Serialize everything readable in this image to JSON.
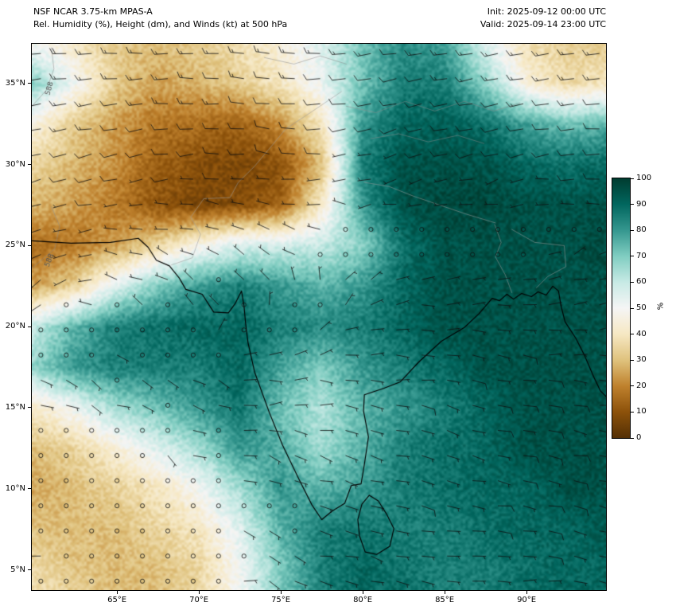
{
  "header": {
    "model": "NSF NCAR 3.75-km MPAS-A",
    "subtitle": "Rel. Humidity (%), Height (dm), and Winds (kt) at 500 hPa",
    "init": "Init: 2025-09-12 00:00 UTC",
    "valid": "Valid: 2025-09-14 23:00 UTC"
  },
  "chart_data": {
    "type": "heatmap",
    "field_name": "Relative Humidity",
    "units": "%",
    "level": "500 hPa",
    "overlays": [
      "height contours (dm)",
      "wind barbs (kt)"
    ],
    "xlim": [
      59.8,
      94.85
    ],
    "ylim": [
      3.75,
      37.45
    ],
    "x_ticks": [
      {
        "value": 65,
        "label": "65°E"
      },
      {
        "value": 70,
        "label": "70°E"
      },
      {
        "value": 75,
        "label": "75°E"
      },
      {
        "value": 80,
        "label": "80°E"
      },
      {
        "value": 85,
        "label": "85°E"
      },
      {
        "value": 90,
        "label": "90°E"
      }
    ],
    "y_ticks": [
      {
        "value": 5,
        "label": "5°N"
      },
      {
        "value": 10,
        "label": "10°N"
      },
      {
        "value": 15,
        "label": "15°N"
      },
      {
        "value": 20,
        "label": "20°N"
      },
      {
        "value": 25,
        "label": "25°N"
      },
      {
        "value": 30,
        "label": "30°N"
      },
      {
        "value": 35,
        "label": "35°N"
      }
    ],
    "colorbar": {
      "unit_label": "%",
      "ticks": [
        100,
        90,
        80,
        70,
        60,
        50,
        40,
        30,
        20,
        10,
        0
      ],
      "stops": [
        {
          "value": 0,
          "color": "#543005"
        },
        {
          "value": 10,
          "color": "#8c510a"
        },
        {
          "value": 20,
          "color": "#bf812d"
        },
        {
          "value": 30,
          "color": "#dfc27d"
        },
        {
          "value": 40,
          "color": "#f6e8c3"
        },
        {
          "value": 50,
          "color": "#f5f5f5"
        },
        {
          "value": 60,
          "color": "#c7eae5"
        },
        {
          "value": 70,
          "color": "#80cdc1"
        },
        {
          "value": 80,
          "color": "#35978f"
        },
        {
          "value": 90,
          "color": "#01665e"
        },
        {
          "value": 100,
          "color": "#003c30"
        }
      ]
    },
    "humidity_grid": {
      "lons": [
        60,
        62.5,
        65,
        67.5,
        70,
        72.5,
        75,
        77.5,
        80,
        82.5,
        85,
        87.5,
        90,
        92.5,
        95
      ],
      "lats": [
        37.5,
        35,
        32.5,
        30,
        27.5,
        25,
        22.5,
        20,
        17.5,
        15,
        12.5,
        10,
        7.5,
        5,
        2.5
      ],
      "values": [
        [
          50,
          40,
          32,
          30,
          33,
          38,
          45,
          55,
          72,
          82,
          78,
          55,
          38,
          33,
          32
        ],
        [
          68,
          50,
          32,
          25,
          28,
          33,
          40,
          52,
          72,
          85,
          85,
          68,
          45,
          36,
          40
        ],
        [
          45,
          32,
          24,
          18,
          16,
          14,
          22,
          40,
          80,
          90,
          92,
          88,
          78,
          72,
          75
        ],
        [
          35,
          28,
          22,
          13,
          9,
          7,
          10,
          30,
          85,
          95,
          95,
          95,
          90,
          88,
          90
        ],
        [
          28,
          24,
          18,
          11,
          7,
          9,
          14,
          42,
          80,
          95,
          97,
          97,
          95,
          95,
          95
        ],
        [
          16,
          18,
          25,
          35,
          48,
          56,
          58,
          60,
          68,
          88,
          95,
          95,
          95,
          95,
          97
        ],
        [
          25,
          35,
          55,
          70,
          80,
          85,
          80,
          75,
          80,
          90,
          95,
          95,
          95,
          95,
          95
        ],
        [
          60,
          75,
          85,
          88,
          90,
          90,
          85,
          83,
          85,
          90,
          95,
          95,
          95,
          95,
          95
        ],
        [
          68,
          80,
          85,
          85,
          85,
          90,
          78,
          70,
          80,
          85,
          90,
          95,
          95,
          95,
          95
        ],
        [
          42,
          52,
          65,
          72,
          80,
          87,
          72,
          63,
          75,
          80,
          85,
          90,
          95,
          95,
          95
        ],
        [
          30,
          35,
          45,
          55,
          65,
          80,
          76,
          65,
          75,
          85,
          88,
          90,
          95,
          95,
          95
        ],
        [
          26,
          30,
          34,
          40,
          50,
          65,
          80,
          75,
          80,
          85,
          88,
          90,
          90,
          95,
          95
        ],
        [
          30,
          30,
          30,
          35,
          40,
          55,
          75,
          85,
          87,
          85,
          85,
          88,
          90,
          90,
          93
        ],
        [
          36,
          31,
          29,
          30,
          35,
          50,
          70,
          85,
          90,
          87,
          85,
          85,
          88,
          90,
          90
        ],
        [
          40,
          35,
          30,
          30,
          36,
          50,
          70,
          85,
          90,
          90,
          86,
          86,
          90,
          90,
          90
        ]
      ]
    },
    "wind_grid": {
      "lons": [
        60,
        67,
        74,
        81,
        88,
        95
      ],
      "lats": [
        37,
        30,
        23,
        16,
        9,
        4
      ],
      "u": [
        [
          18,
          16,
          14,
          12,
          15,
          16
        ],
        [
          10,
          8,
          8,
          6,
          8,
          10
        ],
        [
          4,
          3,
          2,
          -3,
          -5,
          -5
        ],
        [
          -4,
          -3,
          -4,
          -6,
          -7,
          -8
        ],
        [
          1,
          1,
          -2,
          -6,
          -7,
          -8
        ],
        [
          2,
          1,
          -3,
          -6,
          -7,
          -6
        ]
      ],
      "v": [
        [
          2,
          0,
          -2,
          2,
          3,
          2
        ],
        [
          3,
          2,
          -1,
          2,
          2,
          0
        ],
        [
          2,
          -2,
          -3,
          -2,
          0,
          -2
        ],
        [
          1,
          2,
          0,
          1,
          2,
          0
        ],
        [
          0,
          1,
          1,
          2,
          1,
          2
        ],
        [
          1,
          0,
          1,
          1,
          0,
          1
        ]
      ],
      "barb_spacing_deg": 1.55,
      "calm_threshold_kt": 2.5
    },
    "height_contour_labels": [
      {
        "text": "588",
        "lon": 60.85,
        "lat": 34.7,
        "rotation": -75
      },
      {
        "text": "588",
        "lon": 60.85,
        "lat": 24.1,
        "rotation": -68
      }
    ],
    "coastlines": [
      [
        [
          59.8,
          25.3
        ],
        [
          62.2,
          25.15
        ],
        [
          64.6,
          25.2
        ],
        [
          66.3,
          25.45
        ],
        [
          66.9,
          24.9
        ],
        [
          67.4,
          24.1
        ],
        [
          68.2,
          23.75
        ],
        [
          68.8,
          23.0
        ],
        [
          69.2,
          22.3
        ],
        [
          70.2,
          22.0
        ],
        [
          70.9,
          20.9
        ],
        [
          71.8,
          20.85
        ],
        [
          72.2,
          21.4
        ],
        [
          72.6,
          22.2
        ],
        [
          72.75,
          21.3
        ],
        [
          72.85,
          20.2
        ],
        [
          73.0,
          19.0
        ],
        [
          73.4,
          17.2
        ],
        [
          74.3,
          14.7
        ],
        [
          75.1,
          12.7
        ],
        [
          76.1,
          10.6
        ],
        [
          76.9,
          9.0
        ],
        [
          77.5,
          8.1
        ],
        [
          78.1,
          8.6
        ],
        [
          78.9,
          9.1
        ],
        [
          79.3,
          10.2
        ],
        [
          79.9,
          10.3
        ],
        [
          80.1,
          11.5
        ],
        [
          80.35,
          13.2
        ],
        [
          80.05,
          14.8
        ],
        [
          80.1,
          15.8
        ],
        [
          81.3,
          16.2
        ],
        [
          82.3,
          16.6
        ],
        [
          83.4,
          17.8
        ],
        [
          84.8,
          19.1
        ],
        [
          86.2,
          19.95
        ],
        [
          87.1,
          20.8
        ],
        [
          87.9,
          21.75
        ],
        [
          88.35,
          21.6
        ],
        [
          88.8,
          22.0
        ],
        [
          89.2,
          21.7
        ],
        [
          89.7,
          22.05
        ],
        [
          90.3,
          21.85
        ],
        [
          90.7,
          22.15
        ],
        [
          91.2,
          21.95
        ],
        [
          91.6,
          22.5
        ],
        [
          91.95,
          22.2
        ],
        [
          92.1,
          21.3
        ],
        [
          92.35,
          20.3
        ],
        [
          93.0,
          19.3
        ],
        [
          93.55,
          18.2
        ],
        [
          94.1,
          16.9
        ],
        [
          94.5,
          16.05
        ],
        [
          94.85,
          15.7
        ]
      ],
      [
        [
          79.95,
          9.05
        ],
        [
          80.4,
          9.6
        ],
        [
          80.95,
          9.25
        ],
        [
          81.45,
          8.45
        ],
        [
          81.9,
          7.55
        ],
        [
          81.65,
          6.45
        ],
        [
          80.85,
          5.95
        ],
        [
          80.15,
          6.1
        ],
        [
          79.8,
          7.1
        ],
        [
          79.7,
          8.1
        ],
        [
          79.95,
          9.05
        ]
      ]
    ],
    "borders": [
      [
        [
          68.3,
          23.8
        ],
        [
          69.6,
          24.25
        ],
        [
          70.1,
          25.7
        ],
        [
          69.5,
          26.75
        ],
        [
          70.3,
          27.9
        ],
        [
          71.9,
          27.96
        ],
        [
          72.4,
          28.9
        ],
        [
          73.4,
          29.9
        ],
        [
          74.4,
          31.1
        ],
        [
          75.3,
          32.2
        ],
        [
          76.8,
          33.2
        ],
        [
          78.7,
          34.5
        ]
      ],
      [
        [
          80.1,
          28.9
        ],
        [
          81.6,
          28.65
        ],
        [
          83.1,
          28.05
        ],
        [
          84.7,
          27.5
        ],
        [
          86.3,
          26.95
        ],
        [
          88.1,
          26.4
        ]
      ],
      [
        [
          88.05,
          26.3
        ],
        [
          88.45,
          25.2
        ],
        [
          88.1,
          24.3
        ],
        [
          88.7,
          23.2
        ],
        [
          89.1,
          22.1
        ]
      ],
      [
        [
          89.1,
          26.0
        ],
        [
          90.5,
          25.2
        ],
        [
          92.3,
          25.0
        ],
        [
          92.4,
          23.7
        ],
        [
          91.3,
          23.1
        ],
        [
          90.6,
          22.4
        ]
      ]
    ],
    "terrain_lines": [
      [
        [
          59.8,
          33.6
        ],
        [
          60.7,
          34.6
        ],
        [
          61.15,
          35.9
        ],
        [
          61.0,
          37.2
        ]
      ],
      [
        [
          59.8,
          23.6
        ],
        [
          61.2,
          24.8
        ],
        [
          61.5,
          26.2
        ],
        [
          61.0,
          27.4
        ]
      ],
      [
        [
          79.0,
          33.6
        ],
        [
          80.8,
          33.2
        ],
        [
          82.6,
          33.9
        ],
        [
          84.4,
          33.3
        ],
        [
          86.2,
          33.9
        ],
        [
          88.0,
          33.3
        ],
        [
          89.6,
          33.8
        ]
      ],
      [
        [
          80.5,
          31.6
        ],
        [
          82.2,
          31.9
        ],
        [
          84.0,
          31.4
        ],
        [
          85.8,
          31.8
        ],
        [
          87.4,
          31.3
        ]
      ],
      [
        [
          74.0,
          36.6
        ],
        [
          75.8,
          36.2
        ],
        [
          77.4,
          36.7
        ],
        [
          79.0,
          36.2
        ]
      ]
    ]
  }
}
